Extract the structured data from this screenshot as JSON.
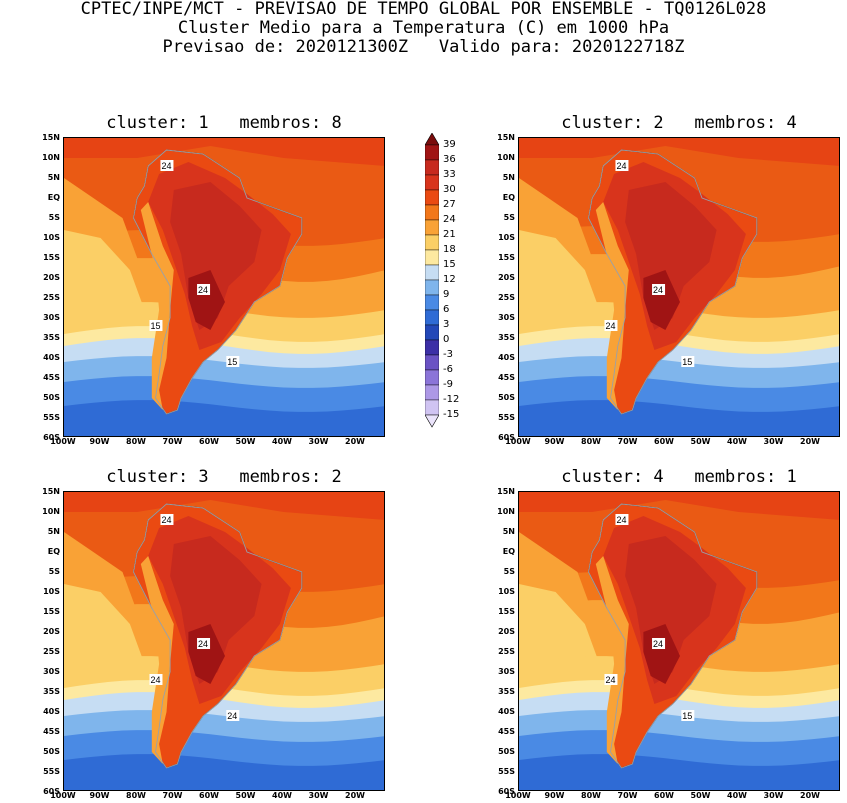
{
  "header": {
    "line1": "CPTEC/INPE/MCT - PREVISAO DE TEMPO GLOBAL POR ENSEMBLE - TQ0126L028",
    "line2": "Cluster Medio para a Temperatura (C) em 1000 hPa",
    "line3": "Previsao de: 2020121300Z   Valido para: 2020122718Z"
  },
  "panels": [
    {
      "title": "cluster: 1   membros: 8",
      "labels": [
        "24",
        "24",
        "15",
        "15"
      ]
    },
    {
      "title": "cluster: 2   membros: 4",
      "labels": [
        "24",
        "24",
        "24",
        "15",
        "24",
        "15"
      ]
    },
    {
      "title": "cluster: 3   membros: 2",
      "labels": [
        "24",
        "24",
        "24",
        "24",
        "15",
        "15"
      ]
    },
    {
      "title": "cluster: 4   membros: 1",
      "labels": [
        "24",
        "24",
        "24",
        "15",
        "24",
        "15"
      ]
    }
  ],
  "axes": {
    "lat_ticks": [
      "15N",
      "10N",
      "5N",
      "EQ",
      "5S",
      "10S",
      "15S",
      "20S",
      "25S",
      "30S",
      "35S",
      "40S",
      "45S",
      "50S",
      "55S",
      "60S"
    ],
    "lon_ticks": [
      "100W",
      "90W",
      "80W",
      "70W",
      "60W",
      "50W",
      "40W",
      "30W",
      "20W"
    ]
  },
  "colorbar": {
    "labels": [
      "39",
      "36",
      "33",
      "30",
      "27",
      "24",
      "21",
      "18",
      "15",
      "12",
      "9",
      "6",
      "3",
      "0",
      "-3",
      "-6",
      "-9",
      "-12",
      "-15"
    ],
    "colors": [
      "#7a0c0c",
      "#a01414",
      "#c72a1e",
      "#d8341c",
      "#ea4a12",
      "#f2771a",
      "#f9a236",
      "#fbcf66",
      "#fde9a0",
      "#c6ddf3",
      "#7fb5ec",
      "#4a8ae4",
      "#2f6bd5",
      "#2348b8",
      "#3c2fa6",
      "#6a52c4",
      "#8b74d8",
      "#ad98e6",
      "#d0c4f2",
      "#ebe4fb"
    ]
  },
  "chart_data": {
    "type": "heatmap",
    "variable": "Temperatura (C) em 1000 hPa",
    "lat_range": [
      -60,
      15
    ],
    "lon_range": [
      -100,
      -12
    ],
    "contour_levels": [
      -15,
      -12,
      -9,
      -6,
      -3,
      0,
      3,
      6,
      9,
      12,
      15,
      18,
      21,
      24,
      27,
      30,
      33,
      36,
      39
    ],
    "clusters": [
      {
        "cluster": 1,
        "membros": 8
      },
      {
        "cluster": 2,
        "membros": 4
      },
      {
        "cluster": 3,
        "membros": 2
      },
      {
        "cluster": 4,
        "membros": 1
      }
    ]
  }
}
